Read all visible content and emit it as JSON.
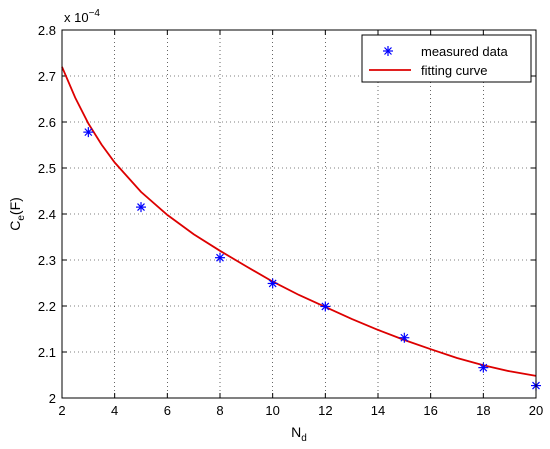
{
  "chart_data": {
    "type": "line",
    "title": "",
    "xlabel": "N",
    "xlabel_sub": "d",
    "ylabel": "C",
    "ylabel_sub": "e",
    "ylabel_suffix": "(F)",
    "y_exponent_prefix": "x 10",
    "y_exponent": "−4",
    "xlim": [
      2,
      20
    ],
    "ylim": [
      2.0,
      2.8
    ],
    "xticks": [
      2,
      4,
      6,
      8,
      10,
      12,
      14,
      16,
      18,
      20
    ],
    "yticks": [
      2.0,
      2.1,
      2.2,
      2.3,
      2.4,
      2.5,
      2.6,
      2.7,
      2.8
    ],
    "ytick_labels": [
      "2",
      "2.1",
      "2.2",
      "2.3",
      "2.4",
      "2.5",
      "2.6",
      "2.7",
      "2.8"
    ],
    "grid": true,
    "legend_position": "top-right",
    "series": [
      {
        "name": "measured data",
        "marker": "asterisk",
        "color": "#0000ff",
        "x": [
          3,
          5,
          8,
          10,
          12,
          15,
          18,
          20
        ],
        "y": [
          2.578,
          2.415,
          2.305,
          2.249,
          2.199,
          2.131,
          2.066,
          2.027
        ]
      },
      {
        "name": "fitting curve",
        "line": "solid",
        "color": "#dd0000",
        "x": [
          2,
          2.5,
          3,
          3.5,
          4,
          5,
          6,
          7,
          8,
          9,
          10,
          11,
          12,
          13,
          14,
          15,
          16,
          17,
          18,
          19,
          20
        ],
        "y": [
          2.72,
          2.653,
          2.597,
          2.551,
          2.512,
          2.448,
          2.398,
          2.356,
          2.32,
          2.286,
          2.253,
          2.224,
          2.198,
          2.172,
          2.148,
          2.126,
          2.106,
          2.087,
          2.071,
          2.058,
          2.048
        ]
      }
    ]
  }
}
